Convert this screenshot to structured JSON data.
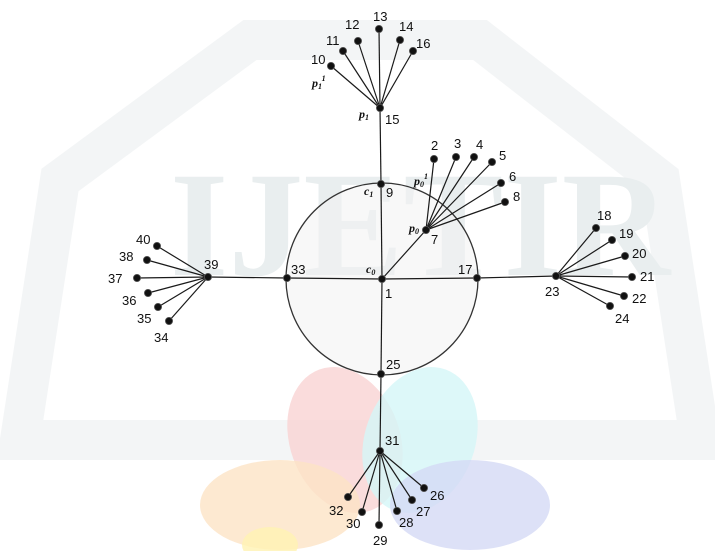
{
  "watermark": {
    "text": "IJETIR",
    "colors": {
      "petal_red": "#f9d3d3",
      "petal_cyan": "#d4f6f8",
      "petal_orange": "#fde3c6",
      "petal_blue": "#d5daf5",
      "petal_yellow": "#fff2b3",
      "gray": "#e9eeef"
    }
  },
  "graph": {
    "nodes": {
      "1": "1",
      "2": "2",
      "3": "3",
      "4": "4",
      "5": "5",
      "6": "6",
      "7": "7",
      "8": "8",
      "9": "9",
      "10": "10",
      "11": "11",
      "12": "12",
      "13": "13",
      "14": "14",
      "15": "15",
      "16": "16",
      "17": "17",
      "18": "18",
      "19": "19",
      "20": "20",
      "21": "21",
      "22": "22",
      "23": "23",
      "24": "24",
      "25": "25",
      "26": "26",
      "27": "27",
      "28": "28",
      "29": "29",
      "30": "30",
      "31": "31",
      "32": "32",
      "33": "33",
      "34": "34",
      "35": "35",
      "36": "36",
      "37": "37",
      "38": "38",
      "39": "39",
      "40": "40"
    },
    "edges": [
      [
        "1",
        "9"
      ],
      [
        "9",
        "15"
      ],
      [
        "1",
        "17"
      ],
      [
        "17",
        "23"
      ],
      [
        "1",
        "25"
      ],
      [
        "25",
        "31"
      ],
      [
        "1",
        "33"
      ],
      [
        "33",
        "39"
      ],
      [
        "1",
        "7"
      ],
      [
        "15",
        "10"
      ],
      [
        "15",
        "11"
      ],
      [
        "15",
        "12"
      ],
      [
        "15",
        "13"
      ],
      [
        "15",
        "14"
      ],
      [
        "15",
        "16"
      ],
      [
        "7",
        "2"
      ],
      [
        "7",
        "3"
      ],
      [
        "7",
        "4"
      ],
      [
        "7",
        "5"
      ],
      [
        "7",
        "6"
      ],
      [
        "7",
        "8"
      ],
      [
        "23",
        "18"
      ],
      [
        "23",
        "19"
      ],
      [
        "23",
        "20"
      ],
      [
        "23",
        "21"
      ],
      [
        "23",
        "22"
      ],
      [
        "23",
        "24"
      ],
      [
        "31",
        "26"
      ],
      [
        "31",
        "27"
      ],
      [
        "31",
        "28"
      ],
      [
        "31",
        "29"
      ],
      [
        "31",
        "30"
      ],
      [
        "31",
        "32"
      ],
      [
        "39",
        "34"
      ],
      [
        "39",
        "35"
      ],
      [
        "39",
        "36"
      ],
      [
        "39",
        "37"
      ],
      [
        "39",
        "38"
      ],
      [
        "39",
        "40"
      ]
    ],
    "symbols": {
      "c0": "c",
      "c0_sub": "0",
      "c1": "c",
      "c1_sub": "1",
      "p0": "p",
      "p0_sub": "0",
      "p01": "p",
      "p01_sub": "0",
      "p01_sup": "1",
      "p1": "p",
      "p1_sub": "1",
      "p11": "p",
      "p11_sub": "1",
      "p11_sup": "1"
    },
    "colors": {
      "circle_fill": "#f2f2f2",
      "circle_stroke": "#333333",
      "edge": "#1a1a1a",
      "node": "#111111"
    }
  }
}
